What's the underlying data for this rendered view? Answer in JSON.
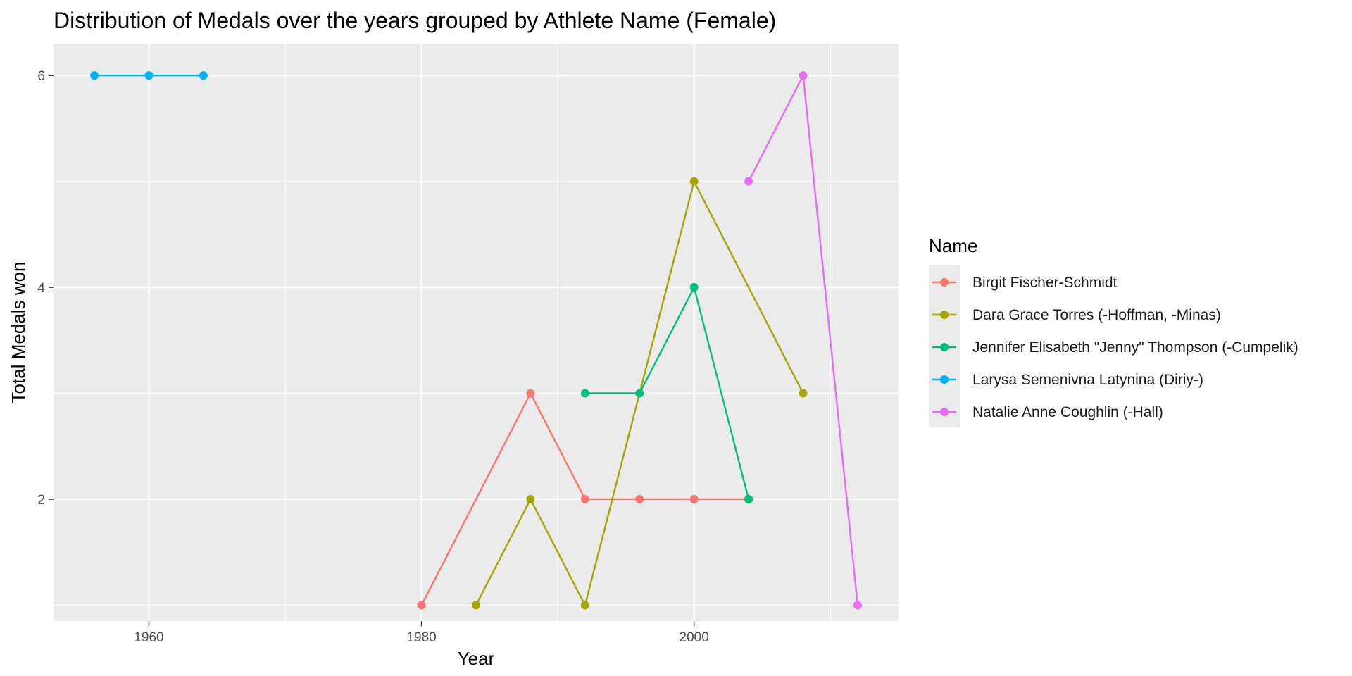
{
  "chart_data": {
    "type": "line",
    "title": "Distribution of Medals over the years grouped by Athlete Name (Female)",
    "xlabel": "Year",
    "ylabel": "Total Medals won",
    "xlim": [
      1953,
      2015
    ],
    "ylim": [
      0.85,
      6.3
    ],
    "x_ticks": [
      {
        "value": 1960,
        "label": "1960"
      },
      {
        "value": 1980,
        "label": "1980"
      },
      {
        "value": 2000,
        "label": "2000"
      }
    ],
    "y_ticks": [
      {
        "value": 2,
        "label": "2"
      },
      {
        "value": 4,
        "label": "4"
      },
      {
        "value": 6,
        "label": "6"
      }
    ],
    "x_minor": [
      1970,
      1990,
      2010
    ],
    "y_minor": [
      1,
      3,
      5
    ],
    "grid": true,
    "legend_title": "Name",
    "legend_position": "right",
    "series": [
      {
        "name": "Birgit Fischer-Schmidt",
        "color": "#F8766D",
        "points": [
          [
            1980,
            1
          ],
          [
            1988,
            3
          ],
          [
            1992,
            2
          ],
          [
            1996,
            2
          ],
          [
            2000,
            2
          ],
          [
            2004,
            2
          ]
        ]
      },
      {
        "name": "Dara Grace Torres (-Hoffman, -Minas)",
        "color": "#A3A500",
        "points": [
          [
            1984,
            1
          ],
          [
            1988,
            2
          ],
          [
            1992,
            1
          ],
          [
            2000,
            5
          ],
          [
            2008,
            3
          ]
        ]
      },
      {
        "name": "Jennifer Elisabeth \"Jenny\" Thompson (-Cumpelik)",
        "color": "#00BF7D",
        "points": [
          [
            1992,
            3
          ],
          [
            1996,
            3
          ],
          [
            2000,
            4
          ],
          [
            2004,
            2
          ]
        ]
      },
      {
        "name": "Larysa Semenivna Latynina (Diriy-)",
        "color": "#00B0F6",
        "points": [
          [
            1956,
            6
          ],
          [
            1960,
            6
          ],
          [
            1964,
            6
          ]
        ]
      },
      {
        "name": "Natalie Anne Coughlin (-Hall)",
        "color": "#E76BF3",
        "points": [
          [
            2004,
            5
          ],
          [
            2008,
            6
          ],
          [
            2012,
            1
          ]
        ]
      }
    ]
  }
}
